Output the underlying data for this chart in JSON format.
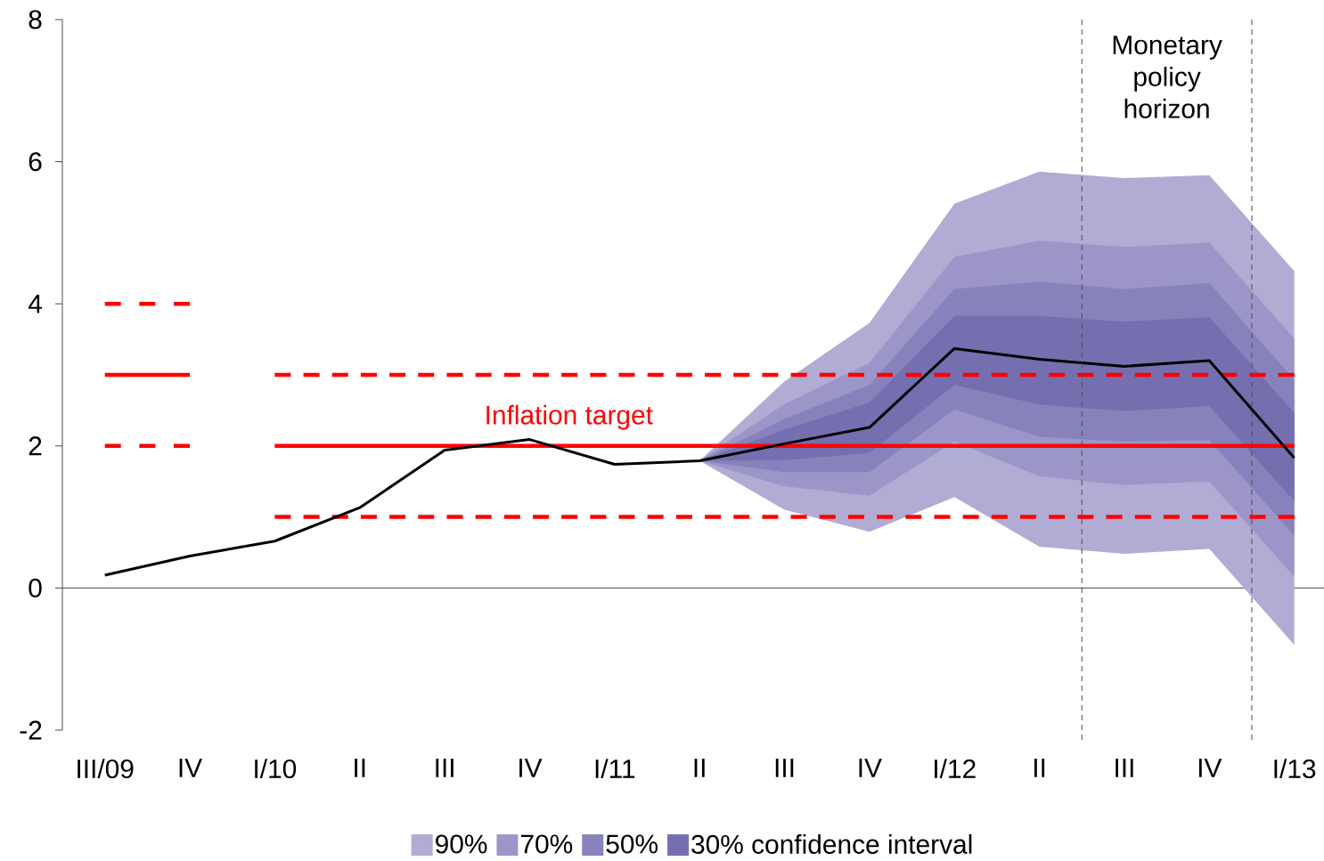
{
  "chart_data": {
    "type": "line",
    "categories": [
      "III/09",
      "IV",
      "I/10",
      "II",
      "III",
      "IV",
      "I/11",
      "II",
      "III",
      "IV",
      "I/12",
      "II",
      "III",
      "IV",
      "I/13"
    ],
    "ylim": [
      -2,
      8
    ],
    "yticks": [
      -2,
      0,
      2,
      4,
      6,
      8
    ],
    "legend": "bottom",
    "series": [
      {
        "type": "line",
        "name": "90%",
        "color": "#b0acd4",
        "values": [
          null,
          null,
          null,
          null,
          null,
          null,
          null,
          null,
          null,
          null,
          null,
          null,
          null,
          null,
          null
        ],
        "upper": [
          null,
          null,
          null,
          null,
          null,
          null,
          null,
          1.79,
          2.91,
          3.73,
          5.41,
          5.86,
          5.77,
          5.81,
          4.46
        ],
        "lower": [
          null,
          null,
          null,
          null,
          null,
          null,
          null,
          1.79,
          1.1,
          0.79,
          1.28,
          0.58,
          0.48,
          0.55,
          -0.8
        ]
      },
      {
        "type": "line",
        "name": "70%",
        "color": "#9c96c8",
        "values": [
          null,
          null,
          null,
          null,
          null,
          null,
          null,
          null,
          null,
          null,
          null,
          null,
          null,
          null,
          null
        ],
        "upper": [
          null,
          null,
          null,
          null,
          null,
          null,
          null,
          1.79,
          2.59,
          3.17,
          4.66,
          4.89,
          4.8,
          4.86,
          3.51
        ],
        "lower": [
          null,
          null,
          null,
          null,
          null,
          null,
          null,
          1.79,
          1.43,
          1.3,
          2.06,
          1.57,
          1.45,
          1.5,
          0.16
        ]
      },
      {
        "type": "line",
        "name": "50%",
        "color": "#8882bc",
        "values": [
          null,
          null,
          null,
          null,
          null,
          null,
          null,
          null,
          null,
          null,
          null,
          null,
          null,
          null,
          null
        ],
        "upper": [
          null,
          null,
          null,
          null,
          null,
          null,
          null,
          1.79,
          2.38,
          2.86,
          4.21,
          4.31,
          4.21,
          4.29,
          2.93
        ],
        "lower": [
          null,
          null,
          null,
          null,
          null,
          null,
          null,
          1.79,
          1.63,
          1.63,
          2.51,
          2.13,
          2.06,
          2.08,
          0.74
        ]
      },
      {
        "type": "line",
        "name": "30% confidence interval",
        "color": "#756fb0",
        "values": [
          null,
          null,
          null,
          null,
          null,
          null,
          null,
          null,
          null,
          null,
          null,
          null,
          null,
          null,
          null
        ],
        "upper": [
          null,
          null,
          null,
          null,
          null,
          null,
          null,
          1.79,
          2.23,
          2.61,
          3.83,
          3.83,
          3.75,
          3.81,
          2.46
        ],
        "lower": [
          null,
          null,
          null,
          null,
          null,
          null,
          null,
          1.79,
          1.8,
          1.9,
          2.86,
          2.58,
          2.49,
          2.56,
          1.22
        ]
      },
      {
        "type": "line",
        "color": "#ff0000",
        "line_style": "solid",
        "values": [
          3,
          3,
          null,
          null,
          null,
          null,
          null,
          null,
          null,
          null,
          null,
          null,
          null,
          null,
          null
        ]
      },
      {
        "type": "line",
        "color": "#ff0000",
        "line_style": "dashed",
        "values": [
          4,
          4,
          null,
          null,
          null,
          null,
          null,
          null,
          null,
          null,
          null,
          null,
          null,
          null,
          null
        ]
      },
      {
        "type": "line",
        "color": "#ff0000",
        "line_style": "dashed",
        "values": [
          2,
          2,
          null,
          null,
          null,
          null,
          null,
          null,
          null,
          null,
          null,
          null,
          null,
          null,
          null
        ]
      },
      {
        "type": "line",
        "color": "#ff0000",
        "line_style": "solid",
        "values": [
          null,
          null,
          2,
          2,
          2,
          2,
          2,
          2,
          2,
          2,
          2,
          2,
          2,
          2,
          2
        ]
      },
      {
        "type": "line",
        "color": "#ff0000",
        "line_style": "dashed",
        "values": [
          null,
          null,
          3,
          3,
          3,
          3,
          3,
          3,
          3,
          3,
          3,
          3,
          3,
          3,
          3
        ]
      },
      {
        "type": "line",
        "color": "#ff0000",
        "line_style": "dashed",
        "values": [
          null,
          null,
          1,
          1,
          1,
          1,
          1,
          1,
          1,
          1,
          1,
          1,
          1,
          1,
          1
        ]
      },
      {
        "type": "line",
        "color": "#000000",
        "line_style": "solid",
        "values": [
          0.18,
          0.45,
          0.66,
          1.13,
          1.94,
          2.09,
          1.74,
          1.79,
          2.03,
          2.26,
          3.37,
          3.22,
          3.12,
          3.2,
          1.83
        ]
      }
    ],
    "annotations": [
      "Inflation target",
      "Monetary policy horizon"
    ]
  }
}
